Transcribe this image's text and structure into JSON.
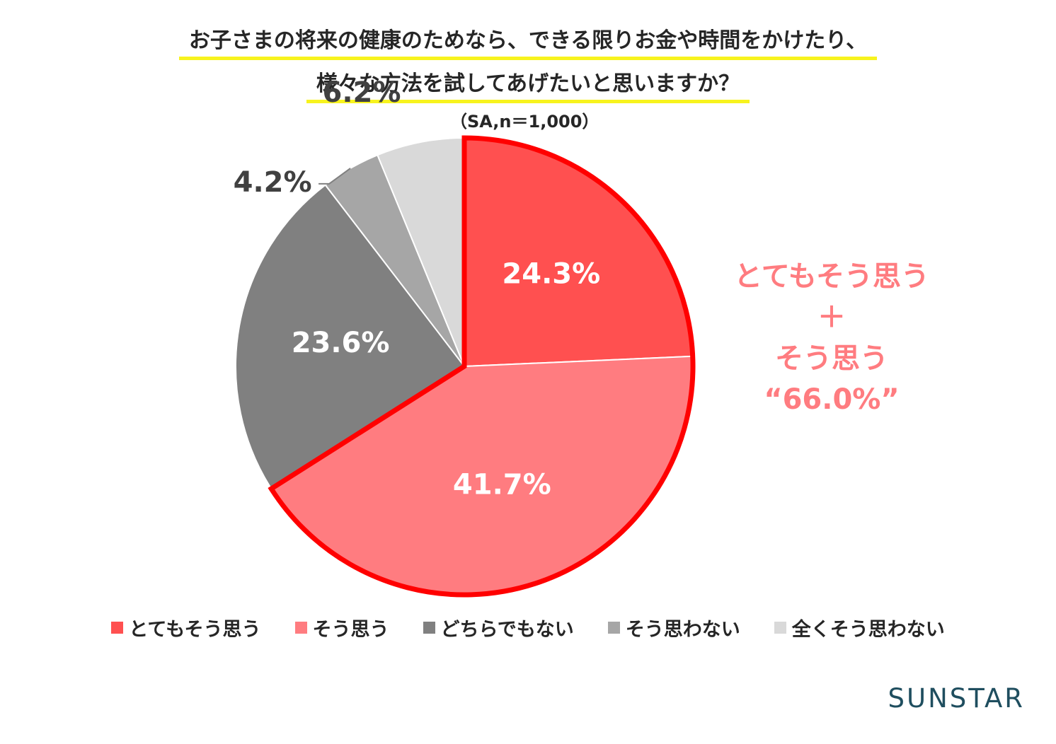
{
  "title": {
    "line1": "お子さまの将来の健康のためなら、できる限りお金や時間をかけたり、",
    "line2": "様々な方法を試してあげたいと思いますか？",
    "sample": "（SA,n＝1,000）"
  },
  "chart_data": {
    "type": "pie",
    "categories": [
      "とてもそう思う",
      "そう思う",
      "どちらでもない",
      "そう思わない",
      "全くそう思わない"
    ],
    "values": [
      24.3,
      41.7,
      23.6,
      4.2,
      6.2
    ],
    "data_labels": [
      "24.3%",
      "41.7%",
      "23.6%",
      "4.2%",
      "6.2%"
    ],
    "colors": [
      "#ff5050",
      "#ff7c80",
      "#808080",
      "#a6a6a6",
      "#d9d9d9"
    ],
    "highlight_color": "#ff0000",
    "legend_position": "bottom"
  },
  "callout": {
    "line1": "とてもそう思う",
    "line2": "＋",
    "line3": "そう思う",
    "line4": "“66.0%”"
  },
  "brand": "SUNSTAR"
}
